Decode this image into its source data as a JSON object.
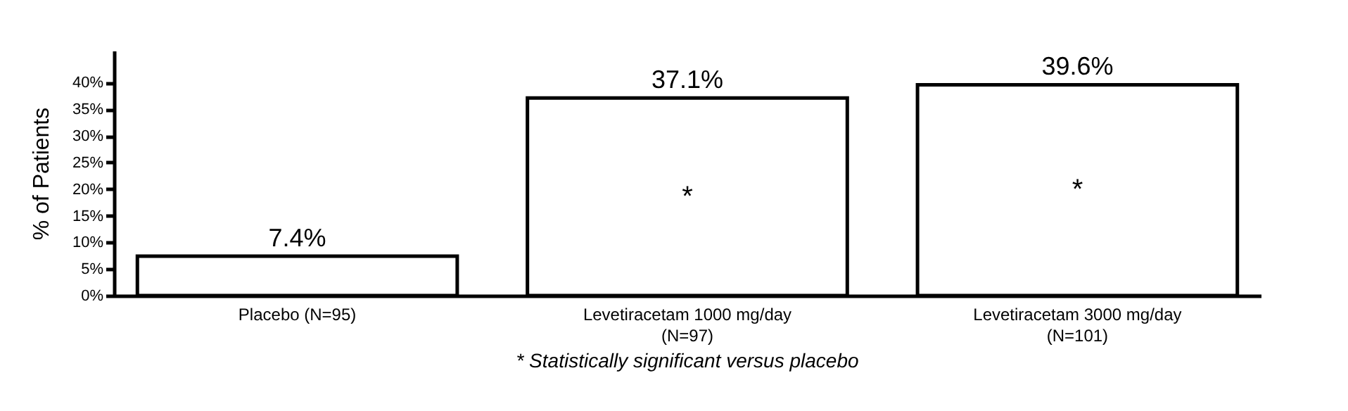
{
  "chart_data": {
    "type": "bar",
    "ylabel": "% of Patients",
    "categories": [
      "Placebo (N=95)",
      "Levetiracetam 1000 mg/day\n(N=97)",
      "Levetiracetam 3000 mg/day\n(N=101)"
    ],
    "values": [
      7.4,
      37.1,
      39.6
    ],
    "value_labels": [
      "7.4%",
      "37.1%",
      "39.6%"
    ],
    "color": "#ffffff",
    "ylim": [
      0,
      46
    ],
    "yticks": [
      {
        "value": 0,
        "label": "0%"
      },
      {
        "value": 5,
        "label": "5%"
      },
      {
        "value": 10,
        "label": "10%"
      },
      {
        "value": 15,
        "label": "15%"
      },
      {
        "value": 20,
        "label": "20%"
      },
      {
        "value": 25,
        "label": "25%"
      },
      {
        "value": 30,
        "label": "30%"
      },
      {
        "value": 35,
        "label": "35%"
      },
      {
        "value": 40,
        "label": "40%"
      }
    ],
    "grid": false,
    "annotations": [
      "*",
      "*",
      "* Statistically significant versus placebo"
    ]
  }
}
